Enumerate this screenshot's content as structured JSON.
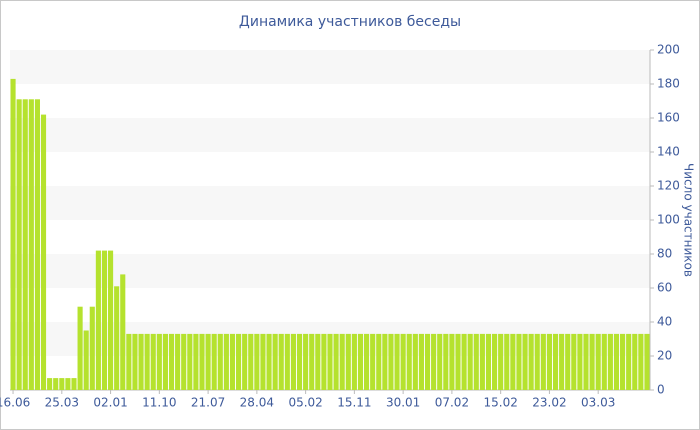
{
  "chart_data": {
    "type": "bar",
    "title": "Динамика участников беседы",
    "y_label": "Число участников",
    "categories": [
      "16.06",
      null,
      null,
      null,
      null,
      null,
      null,
      null,
      "25.03",
      null,
      null,
      null,
      null,
      null,
      null,
      null,
      "02.01",
      null,
      null,
      null,
      null,
      null,
      null,
      null,
      "11.10",
      null,
      null,
      null,
      null,
      null,
      null,
      null,
      "21.07",
      null,
      null,
      null,
      null,
      null,
      null,
      null,
      "28.04",
      null,
      null,
      null,
      null,
      null,
      null,
      null,
      "05.02",
      null,
      null,
      null,
      null,
      null,
      null,
      null,
      "15.11",
      null,
      null,
      null,
      null,
      null,
      null,
      null,
      "30.01",
      null,
      null,
      null,
      null,
      null,
      null,
      null,
      "07.02",
      null,
      null,
      null,
      null,
      null,
      null,
      null,
      "15.02",
      null,
      null,
      null,
      null,
      null,
      null,
      null,
      "23.02",
      null,
      null,
      null,
      null,
      null,
      null,
      null,
      "03.03",
      null,
      null,
      null,
      null,
      null,
      null,
      null,
      null
    ],
    "values": [
      183,
      171,
      171,
      171,
      171,
      162,
      7,
      7,
      7,
      7,
      7,
      49,
      35,
      49,
      82,
      82,
      82,
      61,
      68,
      33,
      33,
      33,
      33,
      33,
      33,
      33,
      33,
      33,
      33,
      33,
      33,
      33,
      33,
      33,
      33,
      33,
      33,
      33,
      33,
      33,
      33,
      33,
      33,
      33,
      33,
      33,
      33,
      33,
      33,
      33,
      33,
      33,
      33,
      33,
      33,
      33,
      33,
      33,
      33,
      33,
      33,
      33,
      33,
      33,
      33,
      33,
      33,
      33,
      33,
      33,
      33,
      33,
      33,
      33,
      33,
      33,
      33,
      33,
      33,
      33,
      33,
      33,
      33,
      33,
      33,
      33,
      33,
      33,
      33,
      33,
      33,
      33,
      33,
      33,
      33,
      33,
      33,
      33,
      33,
      33,
      33,
      33,
      33,
      33,
      33
    ],
    "color": "#b5e22e",
    "ylim": [
      0,
      200
    ],
    "yticks": [
      0,
      20,
      40,
      60,
      80,
      100,
      120,
      140,
      160,
      180,
      200
    ],
    "y_axis_side": "right",
    "grid": "bands"
  }
}
